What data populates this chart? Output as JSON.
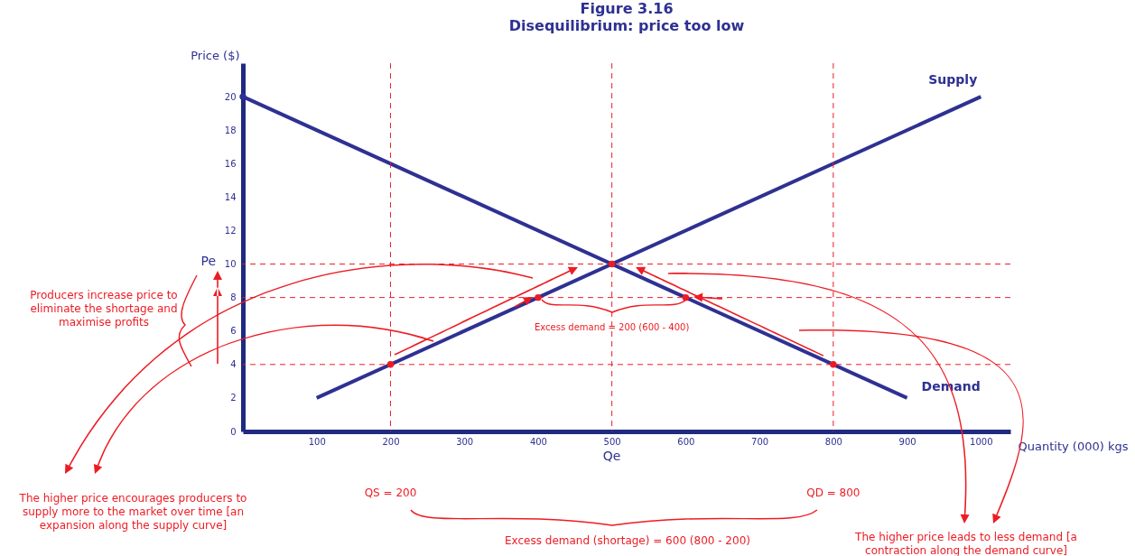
{
  "chart_data": {
    "type": "line",
    "title": "Figure 3.16",
    "subtitle": "Disequilibrium:  price too low",
    "xlabel": "Quantity (000) kgs",
    "ylabel": "Price ($)",
    "xlim": [
      0,
      1040
    ],
    "ylim": [
      0,
      22
    ],
    "xticks": [
      100,
      200,
      300,
      400,
      500,
      600,
      700,
      800,
      900,
      1000
    ],
    "yticks": [
      0,
      2,
      4,
      6,
      8,
      10,
      12,
      14,
      16,
      18,
      20
    ],
    "grid": false,
    "marker": "none",
    "line_style": "solid",
    "series": [
      {
        "name": "Supply",
        "color": "#2e3192",
        "x": [
          100,
          1000
        ],
        "values": [
          2,
          20
        ]
      },
      {
        "name": "Demand",
        "color": "#2e3192",
        "x": [
          0,
          900
        ],
        "values": [
          20,
          2
        ]
      },
      {
        "type": "scatter",
        "color": "#ed1c24",
        "x": [
          200,
          400,
          500,
          600,
          800
        ],
        "values": [
          4,
          8,
          10,
          8,
          4
        ]
      },
      {
        "type": "scatter",
        "color": "#2e3192",
        "x": [
          0
        ],
        "values": [
          20
        ]
      }
    ],
    "ref_lines": [
      {
        "axis": "y",
        "value": 10,
        "label": "Pe",
        "color": "#ed1c24",
        "line_style": "dashed"
      },
      {
        "axis": "y",
        "value": 8,
        "color": "#ed1c24",
        "line_style": "dashed"
      },
      {
        "axis": "y",
        "value": 4,
        "color": "#ed1c24",
        "line_style": "dashed"
      },
      {
        "axis": "x",
        "value": 200,
        "label": "QS = 200",
        "color": "#ed1c24",
        "line_style": "dashed"
      },
      {
        "axis": "x",
        "value": 500,
        "label": "Qe",
        "color": "#ed1c24",
        "line_style": "dashed"
      },
      {
        "axis": "x",
        "value": 800,
        "label": "QD = 800",
        "color": "#ed1c24",
        "line_style": "dashed"
      }
    ],
    "annotations": [
      {
        "text": "Excess demand = 200 (600 - 400)",
        "x": 500,
        "y": 8
      },
      "Producers increase price to eliminate the shortage and maximise profits",
      "The higher price encourages producers to supply more to the market over time [an expansion along the supply curve]",
      "Excess demand (shortage) = 600 (800 - 200)",
      "The higher price leads to less demand [a contraction along the demand curve]"
    ]
  }
}
